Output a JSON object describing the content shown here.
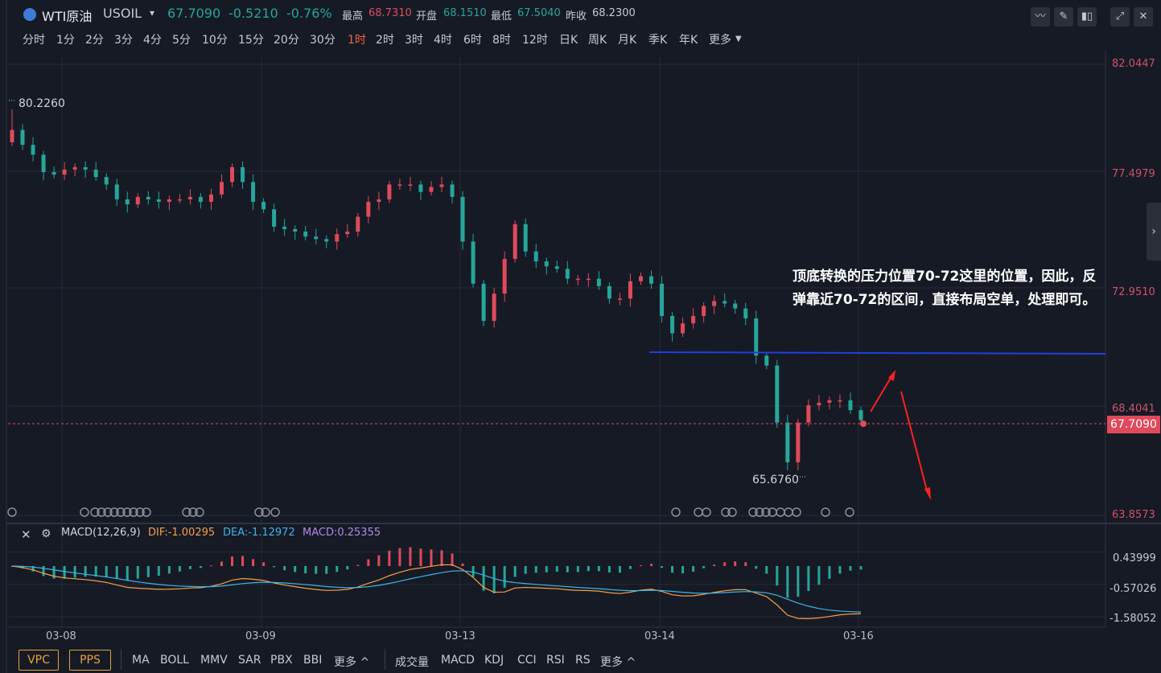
{
  "header": {
    "symbol_name": "WTI原油",
    "symbol_code": "USOIL",
    "dropdown_icon": "caret-down-icon",
    "price": "67.7090",
    "change": "-0.5210",
    "change_pct": "-0.76%",
    "high_label": "最高",
    "high": "68.7310",
    "open_label": "开盘",
    "open": "68.1510",
    "low_label": "最低",
    "low": "67.5040",
    "prev_label": "昨收",
    "prev": "68.2300",
    "colors": {
      "up": "#e04a5b",
      "down": "#26a69a",
      "accent": "#f0683b"
    },
    "tools": [
      "line-chart-icon",
      "pencil-icon",
      "candle-icon",
      "expand-icon",
      "close-icon"
    ]
  },
  "timeframes": {
    "items": [
      "分时",
      "1分",
      "2分",
      "3分",
      "4分",
      "5分",
      "10分",
      "15分",
      "20分",
      "30分",
      "1时",
      "2时",
      "3时",
      "4时",
      "6时",
      "8时",
      "12时",
      "日K",
      "周K",
      "月K",
      "季K",
      "年K",
      "更多"
    ],
    "active": "1时"
  },
  "price_axis": {
    "labels": [
      "82.0447",
      "77.4979",
      "72.9510",
      "68.4041",
      "63.8573"
    ],
    "current_price_tag": "67.7090"
  },
  "chart_markers": {
    "max_label": "80.2260",
    "min_label": "65.6760"
  },
  "x_axis": {
    "labels": [
      "03-08",
      "03-09",
      "03-13",
      "03-14",
      "03-16"
    ]
  },
  "annotation": {
    "text": "顶底转换的压力位置70-72这里的位置，因此，反弹靠近70-72的区间，直接布局空单，处理即可。"
  },
  "macd": {
    "title": "MACD(12,26,9)",
    "dif": "DIF:-1.00295",
    "dea": "DEA:-1.12972",
    "macd": "MACD:0.25355",
    "axis_labels": [
      "0.43999",
      "-0.57026",
      "-1.58052"
    ],
    "colors": {
      "dif": "#f5a04a",
      "dea": "#3bb6e8",
      "macd": "#b08ae8"
    }
  },
  "chart_data": {
    "type": "candlestick",
    "title": "WTI原油 USOIL",
    "timeframe": "1时",
    "ylim": [
      63.8573,
      82.0447
    ],
    "y_ticks": [
      82.0447,
      77.4979,
      72.951,
      68.4041,
      63.8573
    ],
    "x_ticks": [
      "03-08",
      "03-09",
      "03-13",
      "03-14",
      "03-16"
    ],
    "max": 80.226,
    "min": 65.676,
    "last": 67.709,
    "resistance_line": 70.7,
    "projection": "up toward ~70.5 then down toward ~65",
    "closes": [
      79.4,
      78.8,
      78.4,
      77.7,
      77.6,
      77.8,
      77.9,
      77.8,
      77.5,
      77.2,
      76.6,
      76.4,
      76.7,
      76.6,
      76.5,
      76.6,
      76.6,
      76.7,
      76.5,
      76.8,
      77.3,
      77.9,
      77.3,
      76.5,
      76.2,
      75.5,
      75.4,
      75.3,
      75.1,
      75.0,
      74.9,
      75.2,
      75.3,
      75.9,
      76.5,
      76.6,
      77.2,
      77.2,
      77.2,
      76.9,
      77.1,
      77.2,
      76.7,
      74.9,
      73.2,
      71.7,
      72.8,
      74.2,
      75.6,
      74.5,
      74.1,
      73.9,
      73.8,
      73.4,
      73.4,
      73.4,
      73.1,
      72.6,
      72.6,
      73.3,
      73.5,
      73.2,
      71.9,
      71.2,
      71.6,
      71.9,
      72.3,
      72.5,
      72.4,
      72.2,
      71.8,
      70.3,
      69.9,
      67.6,
      66.0,
      67.6,
      68.3,
      68.4,
      68.5,
      68.5,
      68.1,
      67.7
    ],
    "macd": {
      "dif_end": -1.00295,
      "dea_end": -1.12972,
      "macd_end": 0.25355,
      "ylim": [
        -1.9,
        0.8
      ],
      "ticks": [
        0.43999,
        -0.57026,
        -1.58052
      ]
    }
  }
}
